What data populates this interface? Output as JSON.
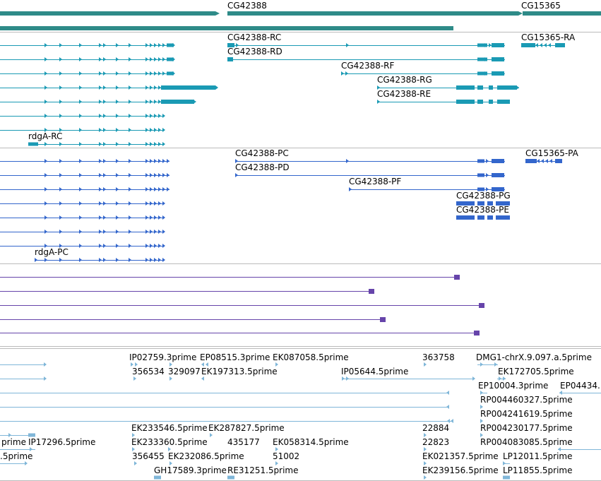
{
  "colors": {
    "gene": "#2e8b88",
    "transcript": "#1a9ab4",
    "protein": "#3366cc",
    "purple": "#6644aa",
    "est": "#7fb6d8",
    "separator": "#bbbbbb"
  },
  "tracks": {
    "genes": [
      "CG42388",
      "CG15365"
    ],
    "transcripts": [
      "CG42388-RC",
      "CG42388-RD",
      "CG42388-RF",
      "CG42388-RG",
      "CG42388-RE",
      "CG15365-RA",
      "rdgA-RC"
    ],
    "proteins": [
      "CG42388-PC",
      "CG42388-PD",
      "CG42388-PF",
      "CG42388-PG",
      "CG42388-PE",
      "CG15365-PA",
      "rdgA-PC"
    ],
    "ests": [
      "IP02759.3prime",
      "EP08515.3prime",
      "EK087058.5prime",
      "363758",
      "DMG1-chrX.9.097.a.5prime",
      "356534",
      "329097",
      "EK197313.5prime",
      "IP05644.5prime",
      "EK172705.5prime",
      "EP10004.3prime",
      "EP04434.",
      "RP004460327.5prime",
      "RP004241619.5prime",
      "EK233546.5prime",
      "EK287827.5prime",
      "22884",
      "RP004230177.5prime",
      "prime",
      "IP17296.5prime",
      "EK233360.5prime",
      "EK058314.5prime",
      "22823",
      "RP004083085.5prime",
      ".5prime",
      "356455",
      "EK232086.5prime",
      "435177",
      "51002",
      "EK021357.5prime",
      "LP12011.5prime",
      "GH17589.3prime",
      "RE31251.5prime",
      "EK239156.5prime",
      "LP11855.5prime"
    ]
  }
}
